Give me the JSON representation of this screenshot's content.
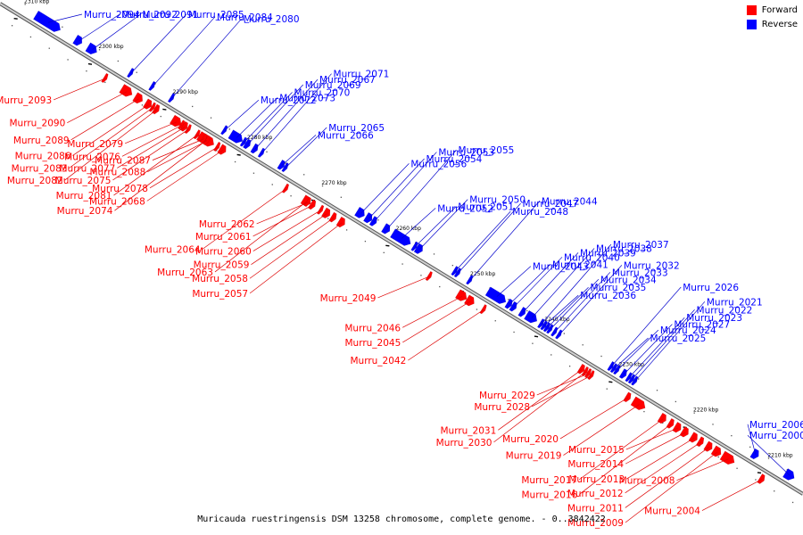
{
  "caption": "Muricauda ruestringensis DSM 13258 chromosome, complete genome. - 0..3842422",
  "legend": [
    {
      "label": "Forward",
      "color": "#ff0000"
    },
    {
      "label": "Reverse",
      "color": "#0000ff"
    }
  ],
  "colors": {
    "forward": "#ff0000",
    "reverse": "#0000ff",
    "forward_line": "#dd0000",
    "reverse_line": "#0000cc",
    "axis": "#888888"
  },
  "genome_range_kbp": [
    2205,
    2313
  ],
  "ticks": [
    "2310 kbp",
    "2300 kbp",
    "2290 kbp",
    "2280 kbp",
    "2270 kbp",
    "2260 kbp",
    "2250 kbp",
    "2240 kbp",
    "2230 kbp",
    "2220 kbp",
    "2210 kbp"
  ],
  "tick_values_kbp": [
    2310,
    2300,
    2290,
    2280,
    2270,
    2260,
    2250,
    2240,
    2230,
    2220,
    2210
  ],
  "genes": [
    {
      "name": "Murru_2094",
      "strand": "reverse",
      "start_kbp": 2308.8,
      "end_kbp": 2305.5
    },
    {
      "name": "Murru_2093",
      "strand": "forward",
      "start_kbp": 2298.4,
      "end_kbp": 2298.0
    },
    {
      "name": "Murru_2092",
      "strand": "reverse",
      "start_kbp": 2303.5,
      "end_kbp": 2302.6
    },
    {
      "name": "Murru_2091",
      "strand": "reverse",
      "start_kbp": 2301.8,
      "end_kbp": 2300.6
    },
    {
      "name": "Murru_2090",
      "strand": "forward",
      "start_kbp": 2296.0,
      "end_kbp": 2294.6
    },
    {
      "name": "Murru_2089",
      "strand": "forward",
      "start_kbp": 2294.2,
      "end_kbp": 2293.2
    },
    {
      "name": "Murru_2088",
      "strand": "forward",
      "start_kbp": 2284.6,
      "end_kbp": 2284.4
    },
    {
      "name": "Murru_2087",
      "strand": "forward",
      "start_kbp": 2285.0,
      "end_kbp": 2284.8
    },
    {
      "name": "Murru_2086",
      "strand": "forward",
      "start_kbp": 2292.8,
      "end_kbp": 2292.0
    },
    {
      "name": "Murru_2085",
      "strand": "reverse",
      "start_kbp": 2296.2,
      "end_kbp": 2295.8
    },
    {
      "name": "Murru_2084",
      "strand": "reverse",
      "start_kbp": 2293.2,
      "end_kbp": 2293.0
    },
    {
      "name": "Murru_2083",
      "strand": "forward",
      "start_kbp": 2292.0,
      "end_kbp": 2291.6
    },
    {
      "name": "Murru_2082",
      "strand": "forward",
      "start_kbp": 2291.6,
      "end_kbp": 2291.0
    },
    {
      "name": "Murru_2081",
      "strand": "forward",
      "start_kbp": 2286.0,
      "end_kbp": 2285.6
    },
    {
      "name": "Murru_2080",
      "strand": "reverse",
      "start_kbp": 2290.6,
      "end_kbp": 2290.4
    },
    {
      "name": "Murru_2079",
      "strand": "forward",
      "start_kbp": 2289.2,
      "end_kbp": 2288.0
    },
    {
      "name": "Murru_2078",
      "strand": "forward",
      "start_kbp": 2283.2,
      "end_kbp": 2283.0
    },
    {
      "name": "Murru_2077",
      "strand": "forward",
      "start_kbp": 2287.8,
      "end_kbp": 2287.2
    },
    {
      "name": "Murru_2076",
      "strand": "forward",
      "start_kbp": 2288.0,
      "end_kbp": 2287.8
    },
    {
      "name": "Murru_2075",
      "strand": "forward",
      "start_kbp": 2287.2,
      "end_kbp": 2286.8
    },
    {
      "name": "Murru_2074",
      "strand": "forward",
      "start_kbp": 2285.6,
      "end_kbp": 2283.6
    },
    {
      "name": "Murru_2073",
      "strand": "reverse",
      "start_kbp": 2282.6,
      "end_kbp": 2281.0
    },
    {
      "name": "Murru_2072",
      "strand": "reverse",
      "start_kbp": 2283.6,
      "end_kbp": 2283.2
    },
    {
      "name": "Murru_2071",
      "strand": "reverse",
      "start_kbp": 2278.6,
      "end_kbp": 2278.2
    },
    {
      "name": "Murru_2070",
      "strand": "reverse",
      "start_kbp": 2281.0,
      "end_kbp": 2280.6
    },
    {
      "name": "Murru_2069",
      "strand": "reverse",
      "start_kbp": 2280.6,
      "end_kbp": 2280.0
    },
    {
      "name": "Murru_2068",
      "strand": "forward",
      "start_kbp": 2282.8,
      "end_kbp": 2282.0
    },
    {
      "name": "Murru_2067",
      "strand": "reverse",
      "start_kbp": 2279.6,
      "end_kbp": 2279.0
    },
    {
      "name": "Murru_2066",
      "strand": "reverse",
      "start_kbp": 2276.0,
      "end_kbp": 2275.4
    },
    {
      "name": "Murru_2065",
      "strand": "reverse",
      "start_kbp": 2275.4,
      "end_kbp": 2275.0
    },
    {
      "name": "Murru_2064",
      "strand": "forward",
      "start_kbp": 2274.0,
      "end_kbp": 2273.8
    },
    {
      "name": "Murru_2063",
      "strand": "forward",
      "start_kbp": 2271.6,
      "end_kbp": 2270.6
    },
    {
      "name": "Murru_2062",
      "strand": "forward",
      "start_kbp": 2271.0,
      "end_kbp": 2270.8
    },
    {
      "name": "Murru_2061",
      "strand": "forward",
      "start_kbp": 2270.6,
      "end_kbp": 2270.0
    },
    {
      "name": "Murru_2060",
      "strand": "forward",
      "start_kbp": 2269.4,
      "end_kbp": 2269.0
    },
    {
      "name": "Murru_2059",
      "strand": "forward",
      "start_kbp": 2268.8,
      "end_kbp": 2268.0
    },
    {
      "name": "Murru_2058",
      "strand": "forward",
      "start_kbp": 2267.8,
      "end_kbp": 2267.2
    },
    {
      "name": "Murru_2057",
      "strand": "forward",
      "start_kbp": 2266.8,
      "end_kbp": 2266.0
    },
    {
      "name": "Murru_2056",
      "strand": "reverse",
      "start_kbp": 2265.6,
      "end_kbp": 2264.6
    },
    {
      "name": "Murru_2055",
      "strand": "reverse",
      "start_kbp": 2262.0,
      "end_kbp": 2261.2
    },
    {
      "name": "Murru_2054",
      "strand": "reverse",
      "start_kbp": 2264.4,
      "end_kbp": 2263.6
    },
    {
      "name": "Murru_2053",
      "strand": "reverse",
      "start_kbp": 2263.6,
      "end_kbp": 2263.0
    },
    {
      "name": "Murru_2052",
      "strand": "reverse",
      "start_kbp": 2260.8,
      "end_kbp": 2258.4
    },
    {
      "name": "Murru_2051",
      "strand": "reverse",
      "start_kbp": 2258.0,
      "end_kbp": 2257.6
    },
    {
      "name": "Murru_2050",
      "strand": "reverse",
      "start_kbp": 2257.6,
      "end_kbp": 2256.8
    },
    {
      "name": "Murru_2049",
      "strand": "forward",
      "start_kbp": 2254.8,
      "end_kbp": 2254.4
    },
    {
      "name": "Murru_2048",
      "strand": "reverse",
      "start_kbp": 2252.6,
      "end_kbp": 2252.2
    },
    {
      "name": "Murru_2047",
      "strand": "reverse",
      "start_kbp": 2252.2,
      "end_kbp": 2251.8
    },
    {
      "name": "Murru_2046",
      "strand": "forward",
      "start_kbp": 2250.8,
      "end_kbp": 2249.6
    },
    {
      "name": "Murru_2045",
      "strand": "forward",
      "start_kbp": 2249.6,
      "end_kbp": 2248.6
    },
    {
      "name": "Murru_2044",
      "strand": "reverse",
      "start_kbp": 2250.6,
      "end_kbp": 2250.2
    },
    {
      "name": "Murru_2043",
      "strand": "reverse",
      "start_kbp": 2248.0,
      "end_kbp": 2245.6
    },
    {
      "name": "Murru_2042",
      "strand": "forward",
      "start_kbp": 2247.4,
      "end_kbp": 2247.2
    },
    {
      "name": "Murru_2041",
      "strand": "reverse",
      "start_kbp": 2245.4,
      "end_kbp": 2244.8
    },
    {
      "name": "Murru_2040",
      "strand": "reverse",
      "start_kbp": 2244.8,
      "end_kbp": 2244.2
    },
    {
      "name": "Murru_2039",
      "strand": "reverse",
      "start_kbp": 2243.6,
      "end_kbp": 2243.0
    },
    {
      "name": "Murru_2038",
      "strand": "reverse",
      "start_kbp": 2242.8,
      "end_kbp": 2241.4
    },
    {
      "name": "Murru_2037",
      "strand": "reverse",
      "start_kbp": 2241.0,
      "end_kbp": 2240.6
    },
    {
      "name": "Murru_2036",
      "strand": "reverse",
      "start_kbp": 2240.6,
      "end_kbp": 2240.2
    },
    {
      "name": "Murru_2035",
      "strand": "reverse",
      "start_kbp": 2240.2,
      "end_kbp": 2239.8
    },
    {
      "name": "Murru_2034",
      "strand": "reverse",
      "start_kbp": 2239.8,
      "end_kbp": 2239.4
    },
    {
      "name": "Murru_2033",
      "strand": "reverse",
      "start_kbp": 2239.2,
      "end_kbp": 2238.8
    },
    {
      "name": "Murru_2032",
      "strand": "reverse",
      "start_kbp": 2238.6,
      "end_kbp": 2238.2
    },
    {
      "name": "Murru_2031",
      "strand": "forward",
      "start_kbp": 2234.4,
      "end_kbp": 2233.8
    },
    {
      "name": "Murru_2030",
      "strand": "forward",
      "start_kbp": 2233.8,
      "end_kbp": 2233.4
    },
    {
      "name": "Murru_2029",
      "strand": "forward",
      "start_kbp": 2233.4,
      "end_kbp": 2233.0
    },
    {
      "name": "Murru_2028",
      "strand": "forward",
      "start_kbp": 2233.0,
      "end_kbp": 2232.6
    },
    {
      "name": "Murru_2027",
      "strand": "reverse",
      "start_kbp": 2230.0,
      "end_kbp": 2229.4
    },
    {
      "name": "Murru_2026",
      "strand": "reverse",
      "start_kbp": 2231.6,
      "end_kbp": 2231.2
    },
    {
      "name": "Murru_2025",
      "strand": "reverse",
      "start_kbp": 2231.2,
      "end_kbp": 2230.8
    },
    {
      "name": "Murru_2024",
      "strand": "reverse",
      "start_kbp": 2230.8,
      "end_kbp": 2230.4
    },
    {
      "name": "Murru_2023",
      "strand": "reverse",
      "start_kbp": 2229.2,
      "end_kbp": 2228.8
    },
    {
      "name": "Murru_2022",
      "strand": "reverse",
      "start_kbp": 2228.8,
      "end_kbp": 2228.4
    },
    {
      "name": "Murru_2021",
      "strand": "reverse",
      "start_kbp": 2228.4,
      "end_kbp": 2228.0
    },
    {
      "name": "Murru_2020",
      "strand": "forward",
      "start_kbp": 2228.2,
      "end_kbp": 2227.6
    },
    {
      "name": "Murru_2019",
      "strand": "forward",
      "start_kbp": 2227.2,
      "end_kbp": 2225.6
    },
    {
      "name": "Murru_2017",
      "strand": "forward",
      "start_kbp": 2223.6,
      "end_kbp": 2222.8
    },
    {
      "name": "Murru_2016",
      "strand": "forward",
      "start_kbp": 2222.4,
      "end_kbp": 2221.8
    },
    {
      "name": "Murru_2015",
      "strand": "forward",
      "start_kbp": 2221.6,
      "end_kbp": 2220.8
    },
    {
      "name": "Murru_2014",
      "strand": "forward",
      "start_kbp": 2220.6,
      "end_kbp": 2219.8
    },
    {
      "name": "Murru_2013",
      "strand": "forward",
      "start_kbp": 2219.4,
      "end_kbp": 2218.6
    },
    {
      "name": "Murru_2012",
      "strand": "forward",
      "start_kbp": 2218.4,
      "end_kbp": 2217.8
    },
    {
      "name": "Murru_2011",
      "strand": "forward",
      "start_kbp": 2217.4,
      "end_kbp": 2216.6
    },
    {
      "name": "Murru_2009",
      "strand": "forward",
      "start_kbp": 2216.4,
      "end_kbp": 2215.4
    },
    {
      "name": "Murru_2008",
      "strand": "forward",
      "start_kbp": 2215.2,
      "end_kbp": 2213.6
    },
    {
      "name": "Murru_2006",
      "strand": "reverse",
      "start_kbp": 2212.4,
      "end_kbp": 2211.6
    },
    {
      "name": "Murru_2004",
      "strand": "forward",
      "start_kbp": 2210.2,
      "end_kbp": 2209.6
    },
    {
      "name": "Murru_2000",
      "strand": "reverse",
      "start_kbp": 2208.0,
      "end_kbp": 2206.8
    }
  ]
}
